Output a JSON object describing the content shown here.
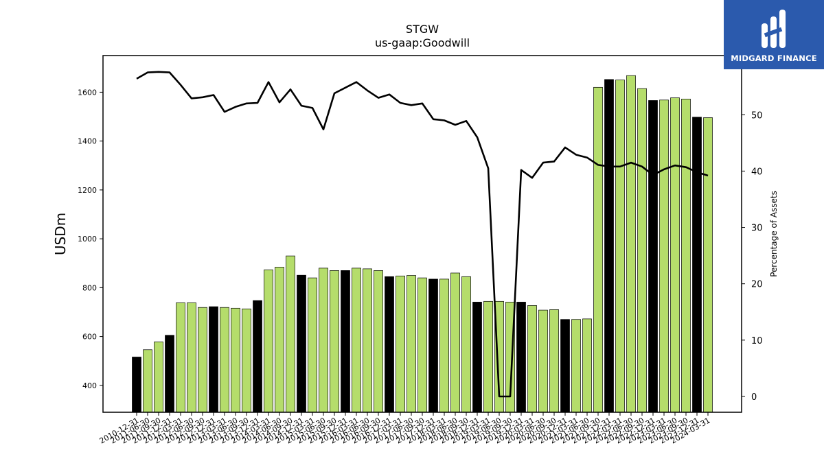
{
  "chart_data": {
    "type": "bar",
    "title": "STGW",
    "subtitle": "us-gaap:Goodwill",
    "ylabel": "USDm",
    "y2label": "Percentage of Assets",
    "ylim": [
      290,
      1750
    ],
    "y2lim": [
      -2.8,
      60.5
    ],
    "yticks": [
      400,
      600,
      800,
      1000,
      1200,
      1400,
      1600
    ],
    "y2ticks": [
      0,
      10,
      20,
      30,
      40,
      50
    ],
    "categories": [
      "2010-12-31",
      "2011-06-30",
      "2011-09-30",
      "2011-12-31",
      "2012-03-31",
      "2012-06-30",
      "2012-09-30",
      "2012-12-31",
      "2013-03-31",
      "2013-06-30",
      "2013-09-30",
      "2013-12-31",
      "2014-03-31",
      "2014-06-30",
      "2014-09-30",
      "2014-12-31",
      "2015-03-31",
      "2015-06-30",
      "2015-09-30",
      "2015-12-31",
      "2016-03-31",
      "2016-06-30",
      "2016-09-30",
      "2016-12-31",
      "2017-03-31",
      "2017-06-30",
      "2017-09-30",
      "2017-12-31",
      "2018-03-31",
      "2018-06-30",
      "2018-09-30",
      "2018-12-31",
      "2019-03-31",
      "2019-06-30",
      "2019-09-30",
      "2019-12-31",
      "2020-03-31",
      "2020-06-30",
      "2020-09-30",
      "2020-12-31",
      "2021-03-31",
      "2021-06-30",
      "2021-09-30",
      "2021-12-31",
      "2022-03-31",
      "2022-06-30",
      "2022-09-30",
      "2022-12-31",
      "2023-03-31",
      "2023-06-30",
      "2023-09-30",
      "2023-12-31",
      "2024-03-31"
    ],
    "series": [
      {
        "values": [
          516,
          546,
          578,
          605,
          738,
          738,
          719,
          722,
          719,
          716,
          713,
          747,
          873,
          884,
          930,
          851,
          840,
          880,
          870,
          870,
          880,
          877,
          870,
          845,
          848,
          850,
          840,
          835,
          835,
          860,
          845,
          741,
          744,
          744,
          741,
          741,
          727,
          708,
          710,
          670,
          670,
          672,
          1620,
          1652,
          1650,
          1668,
          1615,
          1566,
          1568,
          1577,
          1572,
          1498,
          1496
        ],
        "highlight": [
          1,
          0,
          0,
          1,
          0,
          0,
          0,
          1,
          0,
          0,
          0,
          1,
          0,
          0,
          0,
          1,
          0,
          0,
          0,
          1,
          0,
          0,
          0,
          1,
          0,
          0,
          0,
          1,
          0,
          0,
          0,
          1,
          0,
          0,
          0,
          1,
          0,
          0,
          0,
          1,
          0,
          0,
          0,
          1,
          0,
          0,
          0,
          1,
          0,
          0,
          0,
          1,
          0
        ]
      },
      {
        "axis": "right",
        "type": "line",
        "values": [
          56.4,
          57.5,
          57.6,
          57.5,
          55.3,
          52.9,
          53.1,
          53.5,
          50.5,
          51.4,
          52.0,
          52.1,
          55.8,
          52.2,
          54.5,
          51.6,
          51.2,
          47.4,
          53.8,
          54.8,
          55.8,
          54.3,
          53.0,
          53.6,
          52.1,
          51.7,
          52.0,
          49.2,
          49.0,
          48.2,
          48.9,
          46.0,
          40.5,
          0.0,
          0.0,
          40.2,
          38.8,
          41.5,
          41.7,
          44.2,
          42.9,
          42.4,
          41.1,
          40.8,
          40.8,
          41.5,
          40.8,
          39.3,
          40.3,
          41.0,
          40.7,
          39.8,
          39.2
        ]
      }
    ],
    "colors": {
      "bar": "#b5dd6b",
      "bar_highlight": "#000000",
      "line": "#000000"
    }
  },
  "logo": {
    "text": "MIDGARD FINANCE",
    "bg": "#2b5aad"
  }
}
